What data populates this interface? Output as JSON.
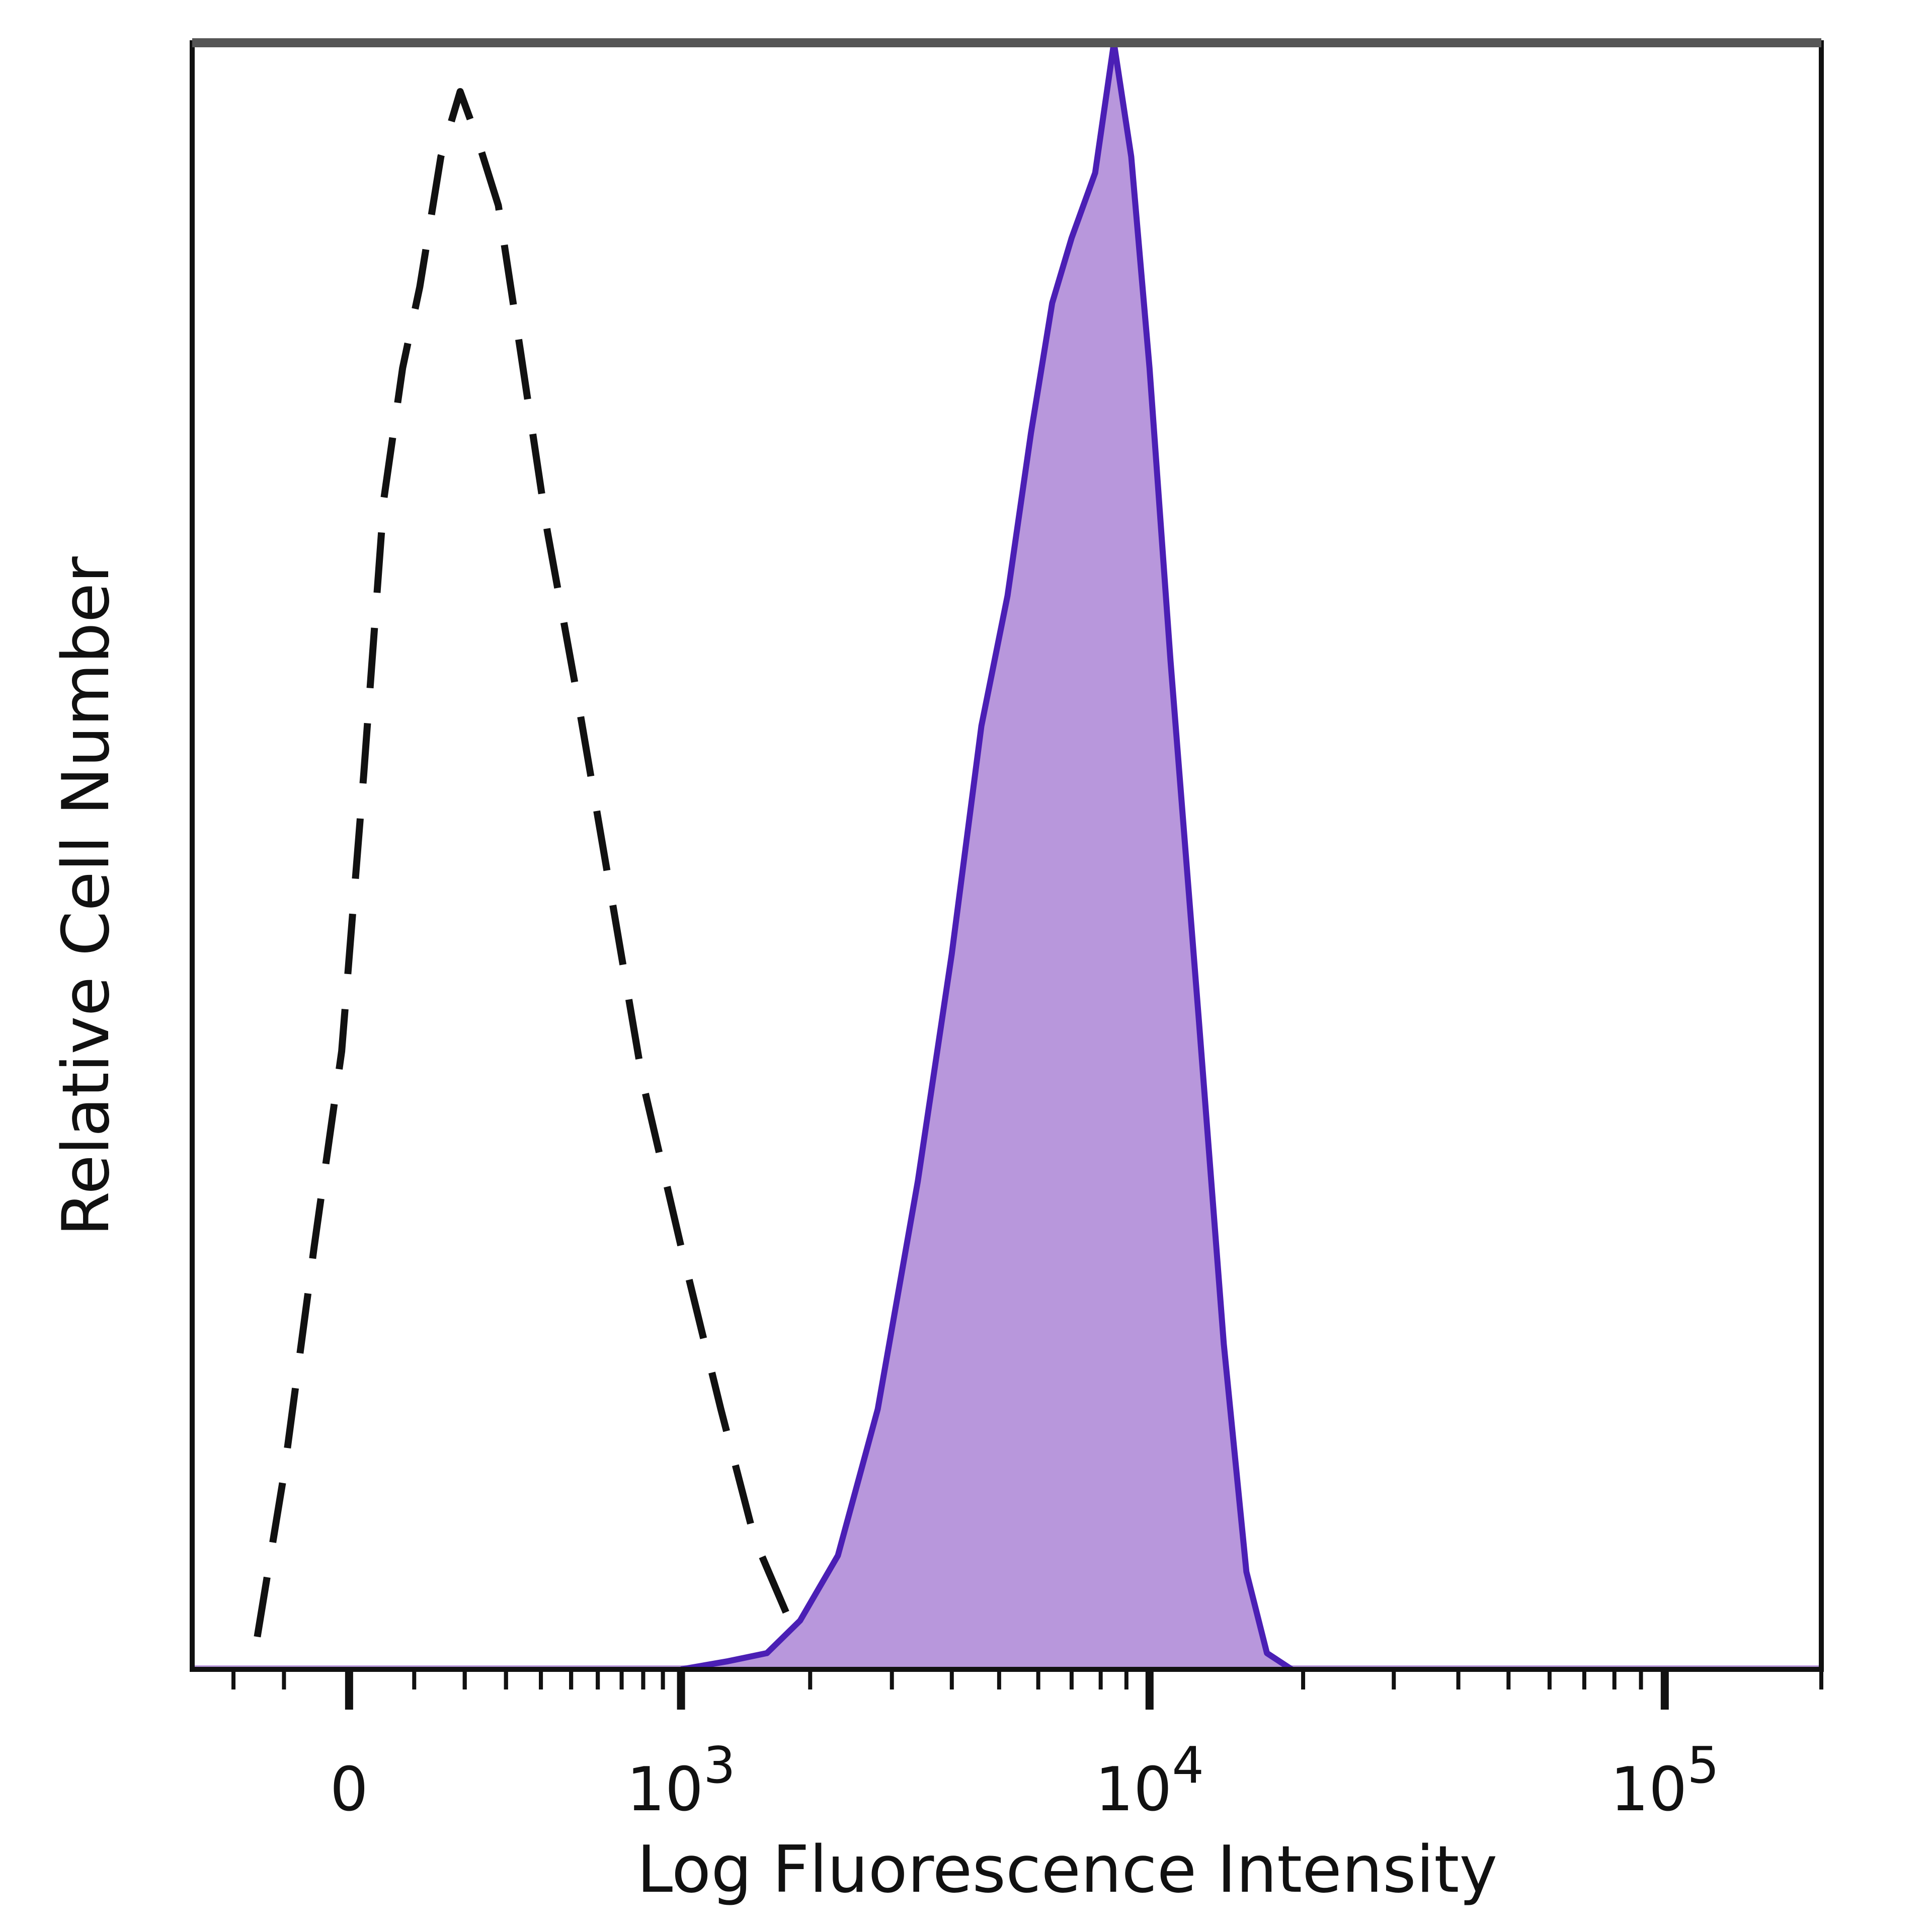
{
  "chart_data": {
    "type": "area",
    "title": "",
    "xlabel": "Log Fluorescence Intensity",
    "ylabel": "Relative Cell Number",
    "x_scale": "biexponential",
    "xlim": [
      -300,
      200000
    ],
    "ylim": [
      0,
      100
    ],
    "x_ticks": [
      {
        "value": 0,
        "label": "0",
        "superscript": ""
      },
      {
        "value": 1000,
        "label": "10",
        "superscript": "3"
      },
      {
        "value": 10000,
        "label": "10",
        "superscript": "4"
      },
      {
        "value": 100000,
        "label": "10",
        "superscript": "5"
      }
    ],
    "grid": false,
    "legend": "none",
    "series": [
      {
        "style": "dashed",
        "fill": "none",
        "color": "#111111",
        "points": [
          [
            -150,
            2
          ],
          [
            -100,
            12
          ],
          [
            -50,
            26
          ],
          [
            -10,
            38
          ],
          [
            20,
            55
          ],
          [
            50,
            72
          ],
          [
            80,
            80
          ],
          [
            110,
            85
          ],
          [
            150,
            93
          ],
          [
            190,
            97
          ],
          [
            230,
            94
          ],
          [
            280,
            90
          ],
          [
            340,
            81
          ],
          [
            420,
            70
          ],
          [
            520,
            60
          ],
          [
            650,
            48
          ],
          [
            800,
            36
          ],
          [
            1000,
            26
          ],
          [
            1250,
            16
          ],
          [
            1500,
            8
          ],
          [
            1800,
            3
          ],
          [
            2300,
            1
          ],
          [
            3200,
            0.5
          ],
          [
            4500,
            0
          ]
        ]
      },
      {
        "style": "solid",
        "fill": "#b897dc",
        "color": "#4b1fb5",
        "points": [
          [
            1000,
            0
          ],
          [
            1300,
            0.5
          ],
          [
            1600,
            1
          ],
          [
            1900,
            3
          ],
          [
            2300,
            7
          ],
          [
            2800,
            16
          ],
          [
            3400,
            30
          ],
          [
            4000,
            44
          ],
          [
            4600,
            58
          ],
          [
            5200,
            66
          ],
          [
            5800,
            76
          ],
          [
            6400,
            84
          ],
          [
            7000,
            88
          ],
          [
            7800,
            92
          ],
          [
            8500,
            100
          ],
          [
            9200,
            93
          ],
          [
            10000,
            80
          ],
          [
            11000,
            62
          ],
          [
            12500,
            40
          ],
          [
            14000,
            20
          ],
          [
            15500,
            6
          ],
          [
            17000,
            1
          ],
          [
            19000,
            0
          ]
        ]
      }
    ]
  }
}
